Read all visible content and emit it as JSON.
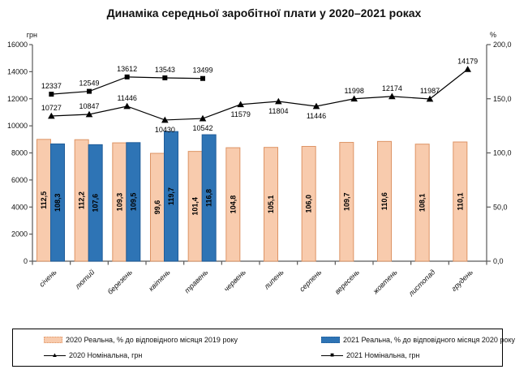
{
  "title": "Динаміка середньої заробітної плати у 2020–2021 роках",
  "chart_data": {
    "type": "bar+line combo",
    "categories": [
      "січень",
      "лютий",
      "березень",
      "квітень",
      "травень",
      "червень",
      "липень",
      "серпень",
      "вересень",
      "жовтень",
      "листопад",
      "грудень"
    ],
    "left_axis": {
      "label": "грн",
      "min": 0,
      "max": 16000,
      "step": 2000,
      "ticks": [
        "0",
        "2000",
        "4000",
        "6000",
        "8000",
        "10000",
        "12000",
        "14000",
        "16000"
      ]
    },
    "right_axis": {
      "label": "%",
      "min": 0,
      "max": 200,
      "step": 50,
      "ticks": [
        "0,0",
        "50,0",
        "100,0",
        "150,0",
        "200,0"
      ]
    },
    "grid": false,
    "legend_position": "bottom-box",
    "series": [
      {
        "name": "2020 Реальна, % до відповідного місяця 2019 року",
        "type": "bar",
        "axis": "right",
        "color": "#F8CBAD",
        "border_color": "#DD9465",
        "values": [
          112.5,
          112.2,
          109.3,
          99.6,
          101.4,
          104.8,
          105.1,
          106.0,
          109.7,
          110.6,
          108.1,
          110.1
        ],
        "labels": [
          "112,5",
          "112,2",
          "109,3",
          "99,6",
          "101,4",
          "104,8",
          "105,1",
          "106,0",
          "109,7",
          "110,6",
          "108,1",
          "110,1"
        ]
      },
      {
        "name": "2021 Реальна, % до відповідного місяця 2020 року",
        "type": "bar",
        "axis": "right",
        "color": "#2E74B5",
        "border_color": "#1F5C99",
        "values": [
          108.3,
          107.6,
          109.5,
          119.7,
          116.8,
          null,
          null,
          null,
          null,
          null,
          null,
          null
        ],
        "labels": [
          "108,3",
          "107,6",
          "109,5",
          "119,7",
          "116,8",
          null,
          null,
          null,
          null,
          null,
          null,
          null
        ]
      },
      {
        "name": "2020 Номінальна, грн",
        "type": "line",
        "axis": "left",
        "marker": "triangle",
        "color": "#000000",
        "values": [
          10727,
          10847,
          11446,
          10430,
          10542,
          11579,
          11804,
          11446,
          11998,
          12174,
          11987,
          14179
        ],
        "labels": [
          "10727",
          "10847",
          "11446",
          "10430",
          "10542",
          "11579",
          "11804",
          "11446",
          "11998",
          "12174",
          "11987",
          "14179"
        ],
        "label_below_indices": [
          3,
          4,
          5,
          6,
          7
        ]
      },
      {
        "name": "2021 Номінальна, грн",
        "type": "line",
        "axis": "left",
        "marker": "square",
        "color": "#000000",
        "values": [
          12337,
          12549,
          13612,
          13543,
          13499,
          null,
          null,
          null,
          null,
          null,
          null,
          null
        ],
        "labels": [
          "12337",
          "12549",
          "13612",
          "13543",
          "13499",
          null,
          null,
          null,
          null,
          null,
          null,
          null
        ],
        "label_below_indices": []
      }
    ]
  },
  "icons": {
    "triangle_marker": "▲",
    "square_marker": "■"
  }
}
